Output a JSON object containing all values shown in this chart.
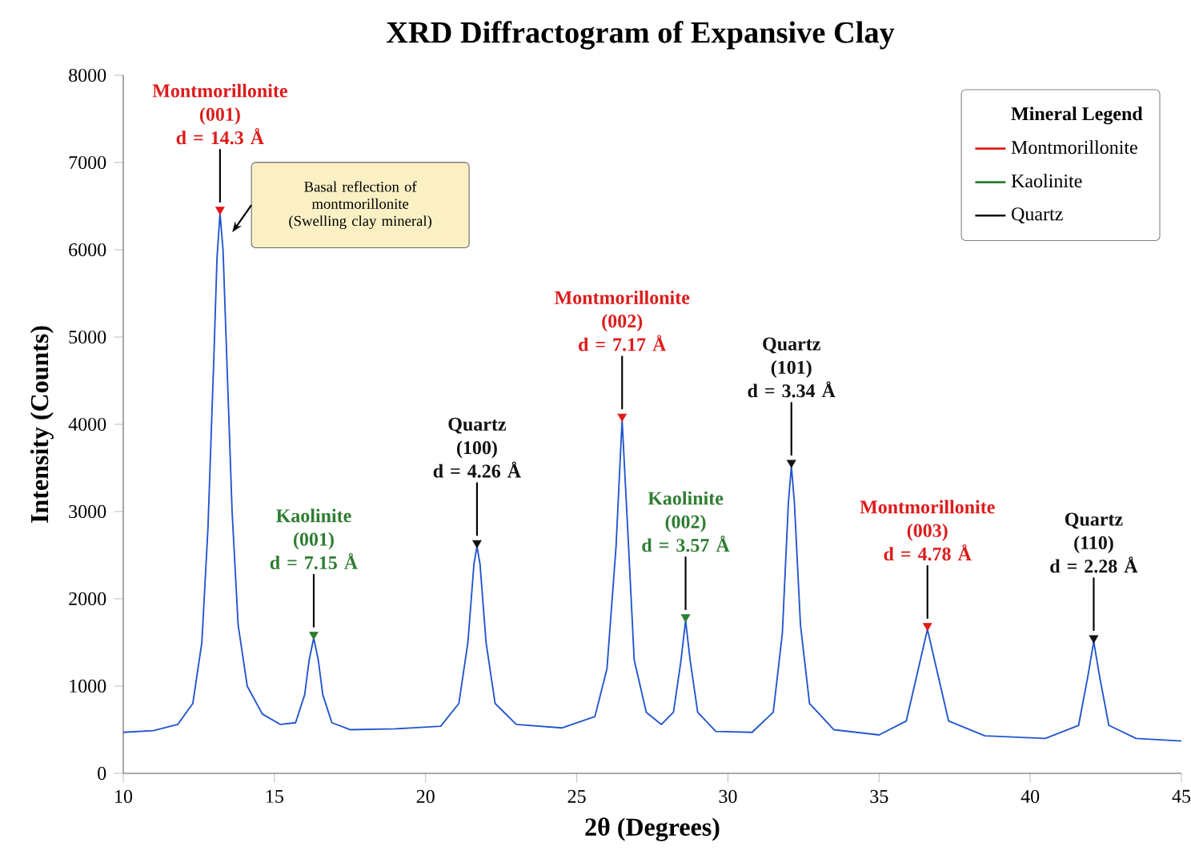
{
  "chart_data": {
    "type": "line",
    "title": "XRD Diffractogram of Expansive Clay",
    "xlabel": "2θ (Degrees)",
    "ylabel": "Intensity (Counts)",
    "legend_title": "Mineral Legend",
    "legend": "top right",
    "xlim": [
      10,
      45
    ],
    "xticks": [
      10,
      15,
      20,
      25,
      30,
      35,
      40,
      45
    ],
    "ylim": [
      0,
      8000
    ],
    "yticks": [
      0,
      1000,
      2000,
      3000,
      4000,
      5000,
      6000,
      7000,
      8000
    ],
    "series": [
      {
        "color": "#2155cd",
        "x": [
          10,
          11,
          11.8,
          12.3,
          12.6,
          12.8,
          13.0,
          13.1,
          13.2,
          13.3,
          13.4,
          13.6,
          13.8,
          14.1,
          14.6,
          15.2,
          15.7,
          16.0,
          16.15,
          16.3,
          16.45,
          16.6,
          16.9,
          17.5,
          19,
          20.5,
          21.1,
          21.4,
          21.6,
          21.7,
          21.8,
          22.0,
          22.3,
          23,
          24.5,
          25.6,
          26.0,
          26.3,
          26.5,
          26.7,
          26.9,
          27.3,
          27.8,
          28.2,
          28.45,
          28.6,
          28.75,
          29.0,
          29.6,
          30.8,
          31.5,
          31.8,
          32.0,
          32.1,
          32.2,
          32.4,
          32.7,
          33.5,
          35,
          35.9,
          36.3,
          36.6,
          36.9,
          37.3,
          38.5,
          40.5,
          41.6,
          41.9,
          42.1,
          42.3,
          42.6,
          43.5,
          45
        ],
        "values": [
          470,
          490,
          560,
          800,
          1500,
          2800,
          4800,
          5900,
          6420,
          6000,
          5000,
          3000,
          1700,
          1000,
          680,
          560,
          580,
          900,
          1300,
          1550,
          1300,
          900,
          580,
          500,
          510,
          540,
          800,
          1500,
          2400,
          2600,
          2400,
          1500,
          800,
          560,
          520,
          650,
          1200,
          2600,
          4050,
          2700,
          1300,
          700,
          560,
          700,
          1300,
          1750,
          1300,
          700,
          480,
          470,
          700,
          1600,
          3100,
          3520,
          3100,
          1700,
          800,
          500,
          440,
          600,
          1200,
          1650,
          1200,
          600,
          430,
          400,
          550,
          1100,
          1510,
          1100,
          550,
          400,
          370
        ]
      },
      {
        "type": "scatter",
        "marker": "triangle",
        "name": "Montmorillonite",
        "color": "#dd1c1c",
        "x": [
          13.2,
          26.5,
          36.6
        ],
        "values": [
          6420,
          4050,
          1650
        ],
        "value_labels": [
          "Montmorillonite\n(001)\nd = 14.3 Å",
          "Montmorillonite\n(002)\nd = 7.17 Å",
          "Montmorillonite\n(003)\nd = 4.78 Å"
        ]
      },
      {
        "type": "scatter",
        "marker": "triangle",
        "name": "Kaolinite",
        "color": "#2e7d32",
        "x": [
          16.3,
          28.6
        ],
        "values": [
          1550,
          1750
        ],
        "value_labels": [
          "Kaolinite\n(001)\nd = 7.15 Å",
          "Kaolinite\n(002)\nd = 3.57 Å"
        ]
      },
      {
        "type": "scatter",
        "marker": "triangle",
        "name": "Quartz",
        "color": "#111111",
        "x": [
          21.7,
          32.1,
          42.1
        ],
        "values": [
          2600,
          3520,
          1510
        ],
        "value_labels": [
          "Quartz\n(100)\nd = 4.26 Å",
          "Quartz\n(101)\nd = 3.34 Å",
          "Quartz\n(110)\nd = 2.28 Å"
        ]
      }
    ],
    "annotations": [
      "Basal reflection of montmorillonite (Swelling clay mineral)"
    ]
  }
}
